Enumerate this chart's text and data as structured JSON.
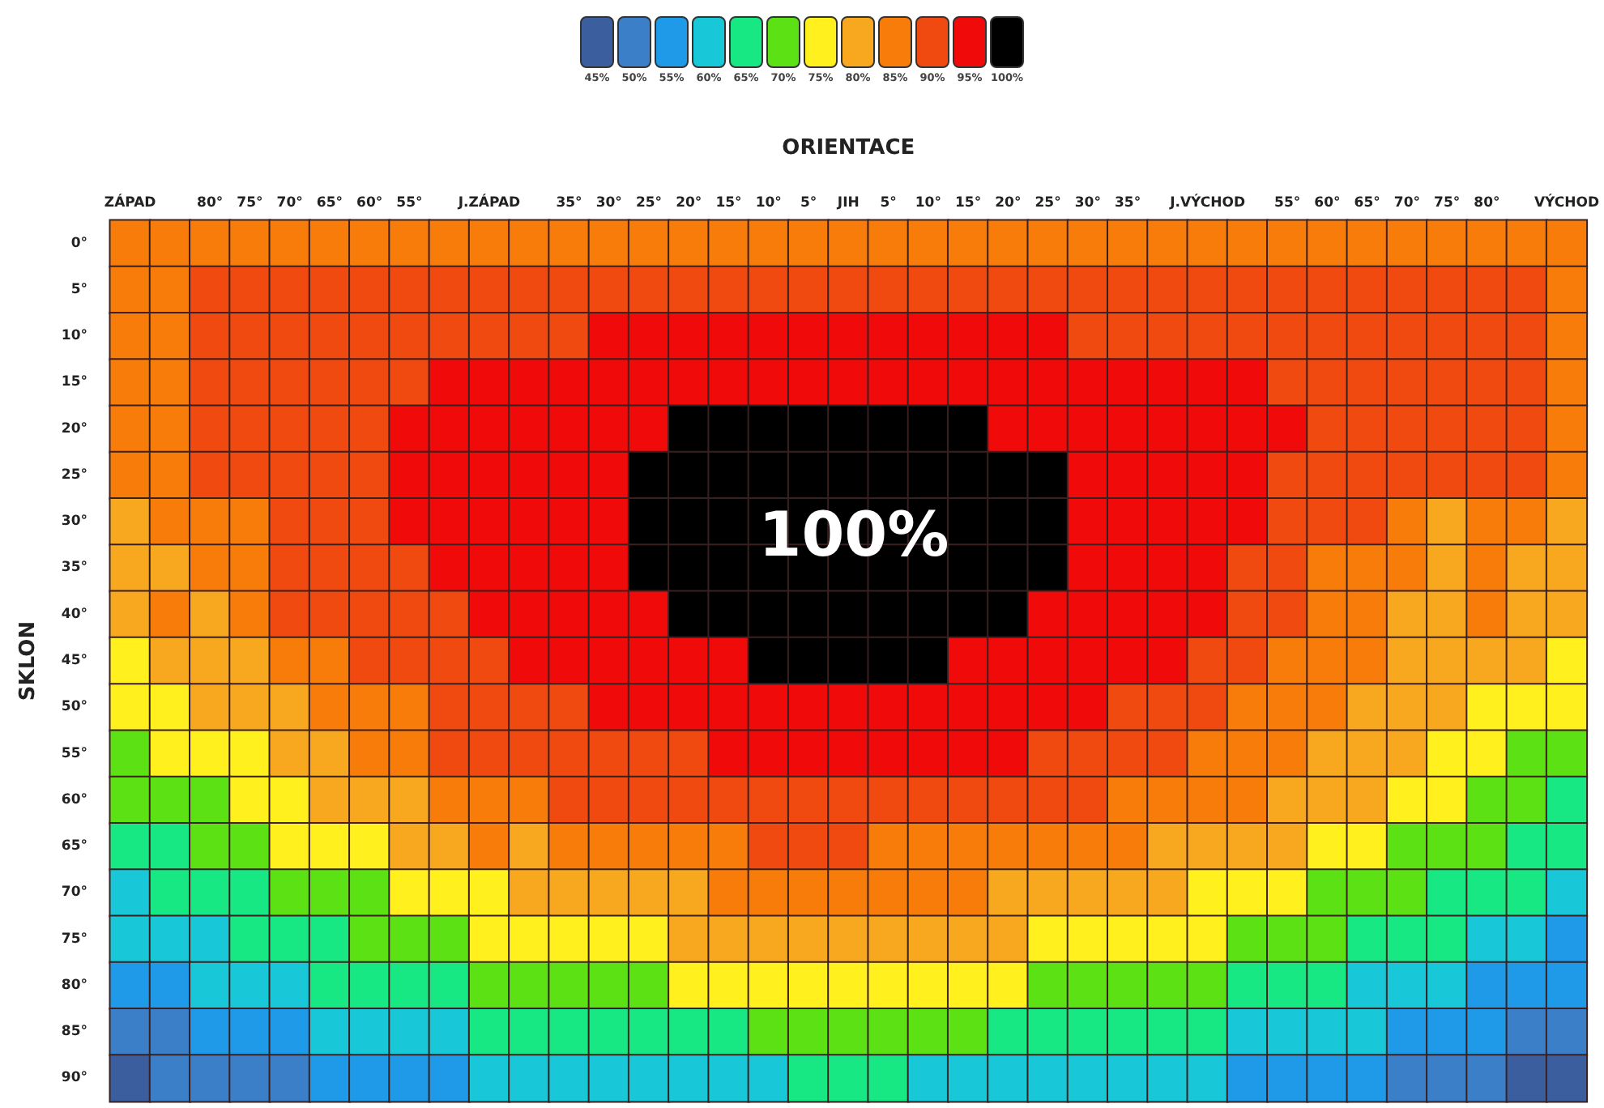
{
  "chart_data": {
    "type": "heatmap",
    "xlabel": "ORIENTACE",
    "ylabel": "SKLON",
    "categories": [
      "ZÁPAD",
      null,
      "80°",
      "75°",
      "70°",
      "65°",
      "60°",
      "55°",
      null,
      "J.ZÁPAD",
      null,
      "35°",
      "30°",
      "25°",
      "20°",
      "15°",
      "10°",
      "5°",
      "JIH",
      "5°",
      "10°",
      "15°",
      "20°",
      "25°",
      "30°",
      "35°",
      null,
      "J.VÝCHOD",
      null,
      "55°",
      "60°",
      "65°",
      "70°",
      "75°",
      "80°",
      null,
      "VÝCHOD"
    ],
    "y_categories": [
      "0°",
      "5°",
      "10°",
      "15°",
      "20°",
      "25°",
      "30°",
      "35°",
      "40°",
      "45°",
      "50°",
      "55°",
      "60°",
      "65°",
      "70°",
      "75°",
      "80°",
      "85°",
      "90°"
    ],
    "cells": [
      [
        85,
        85,
        85,
        85,
        85,
        85,
        85,
        85,
        85,
        85,
        85,
        85,
        85,
        85,
        85,
        85,
        85,
        85,
        85,
        85,
        85,
        85,
        85,
        85,
        85,
        85,
        85,
        85,
        85,
        85,
        85,
        85,
        85,
        85,
        85,
        85,
        85
      ],
      [
        85,
        85,
        90,
        90,
        90,
        90,
        90,
        90,
        90,
        90,
        90,
        90,
        90,
        90,
        90,
        90,
        90,
        90,
        90,
        90,
        90,
        90,
        90,
        90,
        90,
        90,
        90,
        90,
        90,
        90,
        90,
        90,
        90,
        90,
        90,
        90,
        85
      ],
      [
        85,
        85,
        90,
        90,
        90,
        90,
        90,
        90,
        90,
        90,
        90,
        90,
        95,
        95,
        95,
        95,
        95,
        95,
        95,
        95,
        95,
        95,
        95,
        95,
        90,
        90,
        90,
        90,
        90,
        90,
        90,
        90,
        90,
        90,
        90,
        90,
        85
      ],
      [
        85,
        85,
        90,
        90,
        90,
        90,
        90,
        90,
        95,
        95,
        95,
        95,
        95,
        95,
        95,
        95,
        95,
        95,
        95,
        95,
        95,
        95,
        95,
        95,
        95,
        95,
        95,
        95,
        95,
        90,
        90,
        90,
        90,
        90,
        90,
        90,
        85
      ],
      [
        85,
        85,
        90,
        90,
        90,
        90,
        90,
        95,
        95,
        95,
        95,
        95,
        95,
        95,
        100,
        100,
        100,
        100,
        100,
        100,
        100,
        100,
        95,
        95,
        95,
        95,
        95,
        95,
        95,
        95,
        90,
        90,
        90,
        90,
        90,
        90,
        85
      ],
      [
        85,
        85,
        90,
        90,
        90,
        90,
        90,
        95,
        95,
        95,
        95,
        95,
        95,
        100,
        100,
        100,
        100,
        100,
        100,
        100,
        100,
        100,
        100,
        100,
        95,
        95,
        95,
        95,
        95,
        90,
        90,
        90,
        90,
        90,
        90,
        90,
        85
      ],
      [
        80,
        85,
        85,
        85,
        90,
        90,
        90,
        95,
        95,
        95,
        95,
        95,
        95,
        100,
        100,
        100,
        100,
        100,
        100,
        100,
        100,
        100,
        100,
        100,
        95,
        95,
        95,
        95,
        95,
        90,
        90,
        90,
        85,
        80,
        85,
        85,
        80
      ],
      [
        80,
        80,
        85,
        85,
        90,
        90,
        90,
        90,
        95,
        95,
        95,
        95,
        95,
        100,
        100,
        100,
        100,
        100,
        100,
        100,
        100,
        100,
        100,
        100,
        95,
        95,
        95,
        95,
        90,
        90,
        85,
        85,
        85,
        80,
        85,
        80,
        80
      ],
      [
        80,
        85,
        80,
        85,
        90,
        90,
        90,
        90,
        90,
        95,
        95,
        95,
        95,
        95,
        100,
        100,
        100,
        100,
        100,
        100,
        100,
        100,
        100,
        95,
        95,
        95,
        95,
        95,
        90,
        90,
        85,
        85,
        80,
        80,
        85,
        80,
        80
      ],
      [
        75,
        80,
        80,
        80,
        85,
        85,
        90,
        90,
        90,
        90,
        95,
        95,
        95,
        95,
        95,
        95,
        100,
        100,
        100,
        100,
        100,
        95,
        95,
        95,
        95,
        95,
        95,
        90,
        90,
        85,
        85,
        85,
        80,
        80,
        80,
        80,
        75
      ],
      [
        75,
        75,
        80,
        80,
        80,
        85,
        85,
        85,
        90,
        90,
        90,
        90,
        95,
        95,
        95,
        95,
        95,
        95,
        95,
        95,
        95,
        95,
        95,
        95,
        95,
        90,
        90,
        90,
        85,
        85,
        85,
        80,
        80,
        80,
        75,
        75,
        75
      ],
      [
        70,
        75,
        75,
        75,
        80,
        80,
        85,
        85,
        90,
        90,
        90,
        90,
        90,
        90,
        90,
        95,
        95,
        95,
        95,
        95,
        95,
        95,
        95,
        90,
        90,
        90,
        90,
        85,
        85,
        85,
        80,
        80,
        80,
        75,
        75,
        70,
        70
      ],
      [
        70,
        70,
        70,
        75,
        75,
        80,
        80,
        80,
        85,
        85,
        85,
        90,
        90,
        90,
        90,
        90,
        90,
        90,
        90,
        90,
        90,
        90,
        90,
        90,
        90,
        85,
        85,
        85,
        85,
        80,
        80,
        80,
        75,
        75,
        70,
        70,
        65
      ],
      [
        65,
        65,
        70,
        70,
        75,
        75,
        75,
        80,
        80,
        85,
        80,
        85,
        85,
        85,
        85,
        85,
        90,
        90,
        90,
        85,
        85,
        85,
        85,
        85,
        85,
        85,
        80,
        80,
        80,
        80,
        75,
        75,
        70,
        70,
        70,
        65,
        65
      ],
      [
        60,
        65,
        65,
        65,
        70,
        70,
        70,
        75,
        75,
        75,
        80,
        80,
        80,
        80,
        80,
        85,
        85,
        85,
        85,
        85,
        85,
        85,
        80,
        80,
        80,
        80,
        80,
        75,
        75,
        75,
        70,
        70,
        70,
        65,
        65,
        65,
        60
      ],
      [
        60,
        60,
        60,
        65,
        65,
        65,
        70,
        70,
        70,
        75,
        75,
        75,
        75,
        75,
        80,
        80,
        80,
        80,
        80,
        80,
        80,
        80,
        80,
        75,
        75,
        75,
        75,
        75,
        70,
        70,
        70,
        65,
        65,
        65,
        60,
        60,
        55
      ],
      [
        55,
        55,
        60,
        60,
        60,
        65,
        65,
        65,
        65,
        70,
        70,
        70,
        70,
        70,
        75,
        75,
        75,
        75,
        75,
        75,
        75,
        75,
        75,
        70,
        70,
        70,
        70,
        70,
        65,
        65,
        65,
        60,
        60,
        60,
        55,
        55,
        55
      ],
      [
        50,
        50,
        55,
        55,
        55,
        60,
        60,
        60,
        60,
        65,
        65,
        65,
        65,
        65,
        65,
        65,
        70,
        70,
        70,
        70,
        70,
        70,
        65,
        65,
        65,
        65,
        65,
        65,
        60,
        60,
        60,
        60,
        55,
        55,
        55,
        50,
        50
      ],
      [
        45,
        50,
        50,
        50,
        50,
        55,
        55,
        55,
        55,
        60,
        60,
        60,
        60,
        60,
        60,
        60,
        60,
        65,
        65,
        65,
        60,
        60,
        60,
        60,
        60,
        60,
        60,
        60,
        55,
        55,
        55,
        55,
        50,
        50,
        50,
        45,
        45
      ]
    ],
    "clim": [
      42.5,
      102.5
    ],
    "cticks": [
      {
        "value": 45,
        "label": "45%"
      },
      {
        "value": 50,
        "label": "50%"
      },
      {
        "value": 55,
        "label": "55%"
      },
      {
        "value": 60,
        "label": "60%"
      },
      {
        "value": 65,
        "label": "65%"
      },
      {
        "value": 70,
        "label": "70%"
      },
      {
        "value": 75,
        "label": "75%"
      },
      {
        "value": 80,
        "label": "80%"
      },
      {
        "value": 85,
        "label": "85%"
      },
      {
        "value": 90,
        "label": "90%"
      },
      {
        "value": 95,
        "label": "95%"
      },
      {
        "value": 100,
        "label": "100%"
      }
    ],
    "colors": [
      "#3a5e9e",
      "#3a7fc8",
      "#1e9ae8",
      "#18c8d8",
      "#18e884",
      "#5ce214",
      "#fff01e",
      "#f8a81e",
      "#f87c0a",
      "#f04a10",
      "#f00a0a",
      "#000000"
    ],
    "annotations": [
      "100%"
    ]
  }
}
